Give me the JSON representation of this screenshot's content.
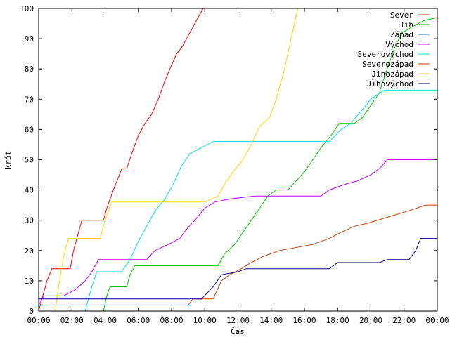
{
  "chart_data": {
    "type": "line",
    "title": "",
    "xlabel": "Čas",
    "ylabel": "krát",
    "xlim": [
      0,
      24
    ],
    "ylim": [
      0,
      100
    ],
    "yticks": [
      0,
      10,
      20,
      30,
      40,
      50,
      60,
      70,
      80,
      90,
      100
    ],
    "xtick_values": [
      0,
      2,
      4,
      6,
      8,
      10,
      12,
      14,
      16,
      18,
      20,
      22,
      24
    ],
    "xtick_labels": [
      "00:00",
      "02:00",
      "04:00",
      "06:00",
      "08:00",
      "10:00",
      "12:00",
      "14:00",
      "16:00",
      "18:00",
      "20:00",
      "22:00",
      "00:00"
    ],
    "grid": false,
    "legend": "top-right",
    "series": [
      {
        "name": "Sever",
        "color": "#ff0000",
        "points": [
          [
            0.0,
            0
          ],
          [
            0.25,
            5
          ],
          [
            0.5,
            10
          ],
          [
            0.8,
            14
          ],
          [
            1.9,
            14
          ],
          [
            2.1,
            20
          ],
          [
            2.4,
            26
          ],
          [
            2.6,
            30
          ],
          [
            3.9,
            30
          ],
          [
            4.1,
            34
          ],
          [
            4.5,
            40
          ],
          [
            5.0,
            47
          ],
          [
            5.3,
            47
          ],
          [
            5.6,
            52
          ],
          [
            6.0,
            58
          ],
          [
            6.4,
            62
          ],
          [
            6.8,
            65
          ],
          [
            7.2,
            70
          ],
          [
            7.6,
            76
          ],
          [
            7.9,
            80
          ],
          [
            8.3,
            85
          ],
          [
            8.6,
            87
          ],
          [
            8.9,
            90
          ],
          [
            9.2,
            93
          ],
          [
            9.6,
            97
          ],
          [
            9.9,
            100
          ],
          [
            10.1,
            100
          ]
        ]
      },
      {
        "name": "Jih",
        "color": "#00c000",
        "points": [
          [
            0.0,
            0
          ],
          [
            3.9,
            0
          ],
          [
            4.1,
            5
          ],
          [
            4.3,
            8
          ],
          [
            5.3,
            8
          ],
          [
            5.5,
            12
          ],
          [
            5.8,
            15
          ],
          [
            10.8,
            15
          ],
          [
            11.2,
            19
          ],
          [
            11.8,
            22
          ],
          [
            12.3,
            26
          ],
          [
            12.8,
            30
          ],
          [
            13.3,
            34
          ],
          [
            13.8,
            38
          ],
          [
            14.3,
            40
          ],
          [
            15.0,
            40
          ],
          [
            15.5,
            43
          ],
          [
            16.0,
            46
          ],
          [
            16.5,
            50
          ],
          [
            17.0,
            54
          ],
          [
            17.6,
            58
          ],
          [
            18.1,
            62
          ],
          [
            19.0,
            62
          ],
          [
            19.5,
            64
          ],
          [
            20.0,
            68
          ],
          [
            20.5,
            72
          ],
          [
            20.8,
            77
          ],
          [
            21.1,
            82
          ],
          [
            21.5,
            88
          ],
          [
            21.9,
            92
          ],
          [
            22.5,
            94
          ],
          [
            23.2,
            96
          ],
          [
            24.0,
            97
          ]
        ]
      },
      {
        "name": "Západ",
        "color": "#0080ff",
        "points": [
          [
            0.0,
            0
          ],
          [
            0.5,
            0
          ]
        ]
      },
      {
        "name": "Východ",
        "color": "#c000ff",
        "points": [
          [
            0.0,
            2
          ],
          [
            0.3,
            5
          ],
          [
            1.5,
            5
          ],
          [
            2.2,
            7
          ],
          [
            2.8,
            10
          ],
          [
            3.2,
            13
          ],
          [
            3.6,
            17
          ],
          [
            6.5,
            17
          ],
          [
            7.0,
            20
          ],
          [
            7.8,
            22
          ],
          [
            8.5,
            24
          ],
          [
            8.9,
            27
          ],
          [
            9.4,
            30
          ],
          [
            10.0,
            34
          ],
          [
            10.6,
            36
          ],
          [
            11.5,
            37
          ],
          [
            13.0,
            38
          ],
          [
            17.0,
            38
          ],
          [
            17.5,
            40
          ],
          [
            18.5,
            42
          ],
          [
            19.2,
            43
          ],
          [
            20.0,
            45
          ],
          [
            20.5,
            47
          ],
          [
            21.0,
            50
          ],
          [
            24.0,
            50
          ]
        ]
      },
      {
        "name": "Severovýchod",
        "color": "#00e0e0",
        "points": [
          [
            0.0,
            0
          ],
          [
            2.8,
            0
          ],
          [
            3.2,
            8
          ],
          [
            3.5,
            13
          ],
          [
            5.0,
            13
          ],
          [
            5.5,
            17
          ],
          [
            6.0,
            23
          ],
          [
            6.5,
            28
          ],
          [
            7.0,
            33
          ],
          [
            7.6,
            37
          ],
          [
            8.1,
            42
          ],
          [
            8.6,
            48
          ],
          [
            9.1,
            52
          ],
          [
            9.8,
            54
          ],
          [
            10.5,
            56
          ],
          [
            17.5,
            56
          ],
          [
            18.2,
            60
          ],
          [
            18.8,
            62
          ],
          [
            19.4,
            66
          ],
          [
            20.0,
            70
          ],
          [
            20.8,
            73
          ],
          [
            24.0,
            73
          ]
        ]
      },
      {
        "name": "Severozápad",
        "color": "#c04000",
        "points": [
          [
            0.0,
            2
          ],
          [
            9.0,
            2
          ],
          [
            9.3,
            4
          ],
          [
            10.5,
            4
          ],
          [
            11.0,
            10
          ],
          [
            11.5,
            12
          ],
          [
            12.2,
            14
          ],
          [
            12.8,
            16
          ],
          [
            13.5,
            18
          ],
          [
            14.5,
            20
          ],
          [
            16.5,
            22
          ],
          [
            17.5,
            24
          ],
          [
            18.2,
            26
          ],
          [
            19.0,
            28
          ],
          [
            19.8,
            29
          ],
          [
            21.0,
            31
          ],
          [
            22.2,
            33
          ],
          [
            23.3,
            35
          ],
          [
            24.0,
            35
          ]
        ]
      },
      {
        "name": "Jihozápad",
        "color": "#ffd700",
        "points": [
          [
            0.0,
            0
          ],
          [
            1.0,
            0
          ],
          [
            1.2,
            8
          ],
          [
            1.5,
            18
          ],
          [
            1.8,
            24
          ],
          [
            3.7,
            24
          ],
          [
            4.0,
            30
          ],
          [
            4.4,
            36
          ],
          [
            9.4,
            36
          ],
          [
            10.0,
            36
          ],
          [
            10.8,
            38
          ],
          [
            11.2,
            42
          ],
          [
            11.7,
            46
          ],
          [
            12.3,
            50
          ],
          [
            12.8,
            55
          ],
          [
            13.3,
            61
          ],
          [
            13.9,
            64
          ],
          [
            14.3,
            70
          ],
          [
            14.8,
            80
          ],
          [
            15.2,
            90
          ],
          [
            15.6,
            100
          ],
          [
            15.8,
            100
          ]
        ]
      },
      {
        "name": "Jihovýchod",
        "color": "#000080",
        "points": [
          [
            0.0,
            4
          ],
          [
            9.8,
            4
          ],
          [
            10.5,
            8
          ],
          [
            11.0,
            12
          ],
          [
            12.0,
            13
          ],
          [
            12.5,
            14
          ],
          [
            17.5,
            14
          ],
          [
            18.0,
            16
          ],
          [
            20.5,
            16
          ],
          [
            21.0,
            17
          ],
          [
            22.3,
            17
          ],
          [
            22.7,
            20
          ],
          [
            23.0,
            24
          ],
          [
            24.0,
            24
          ]
        ]
      }
    ]
  }
}
